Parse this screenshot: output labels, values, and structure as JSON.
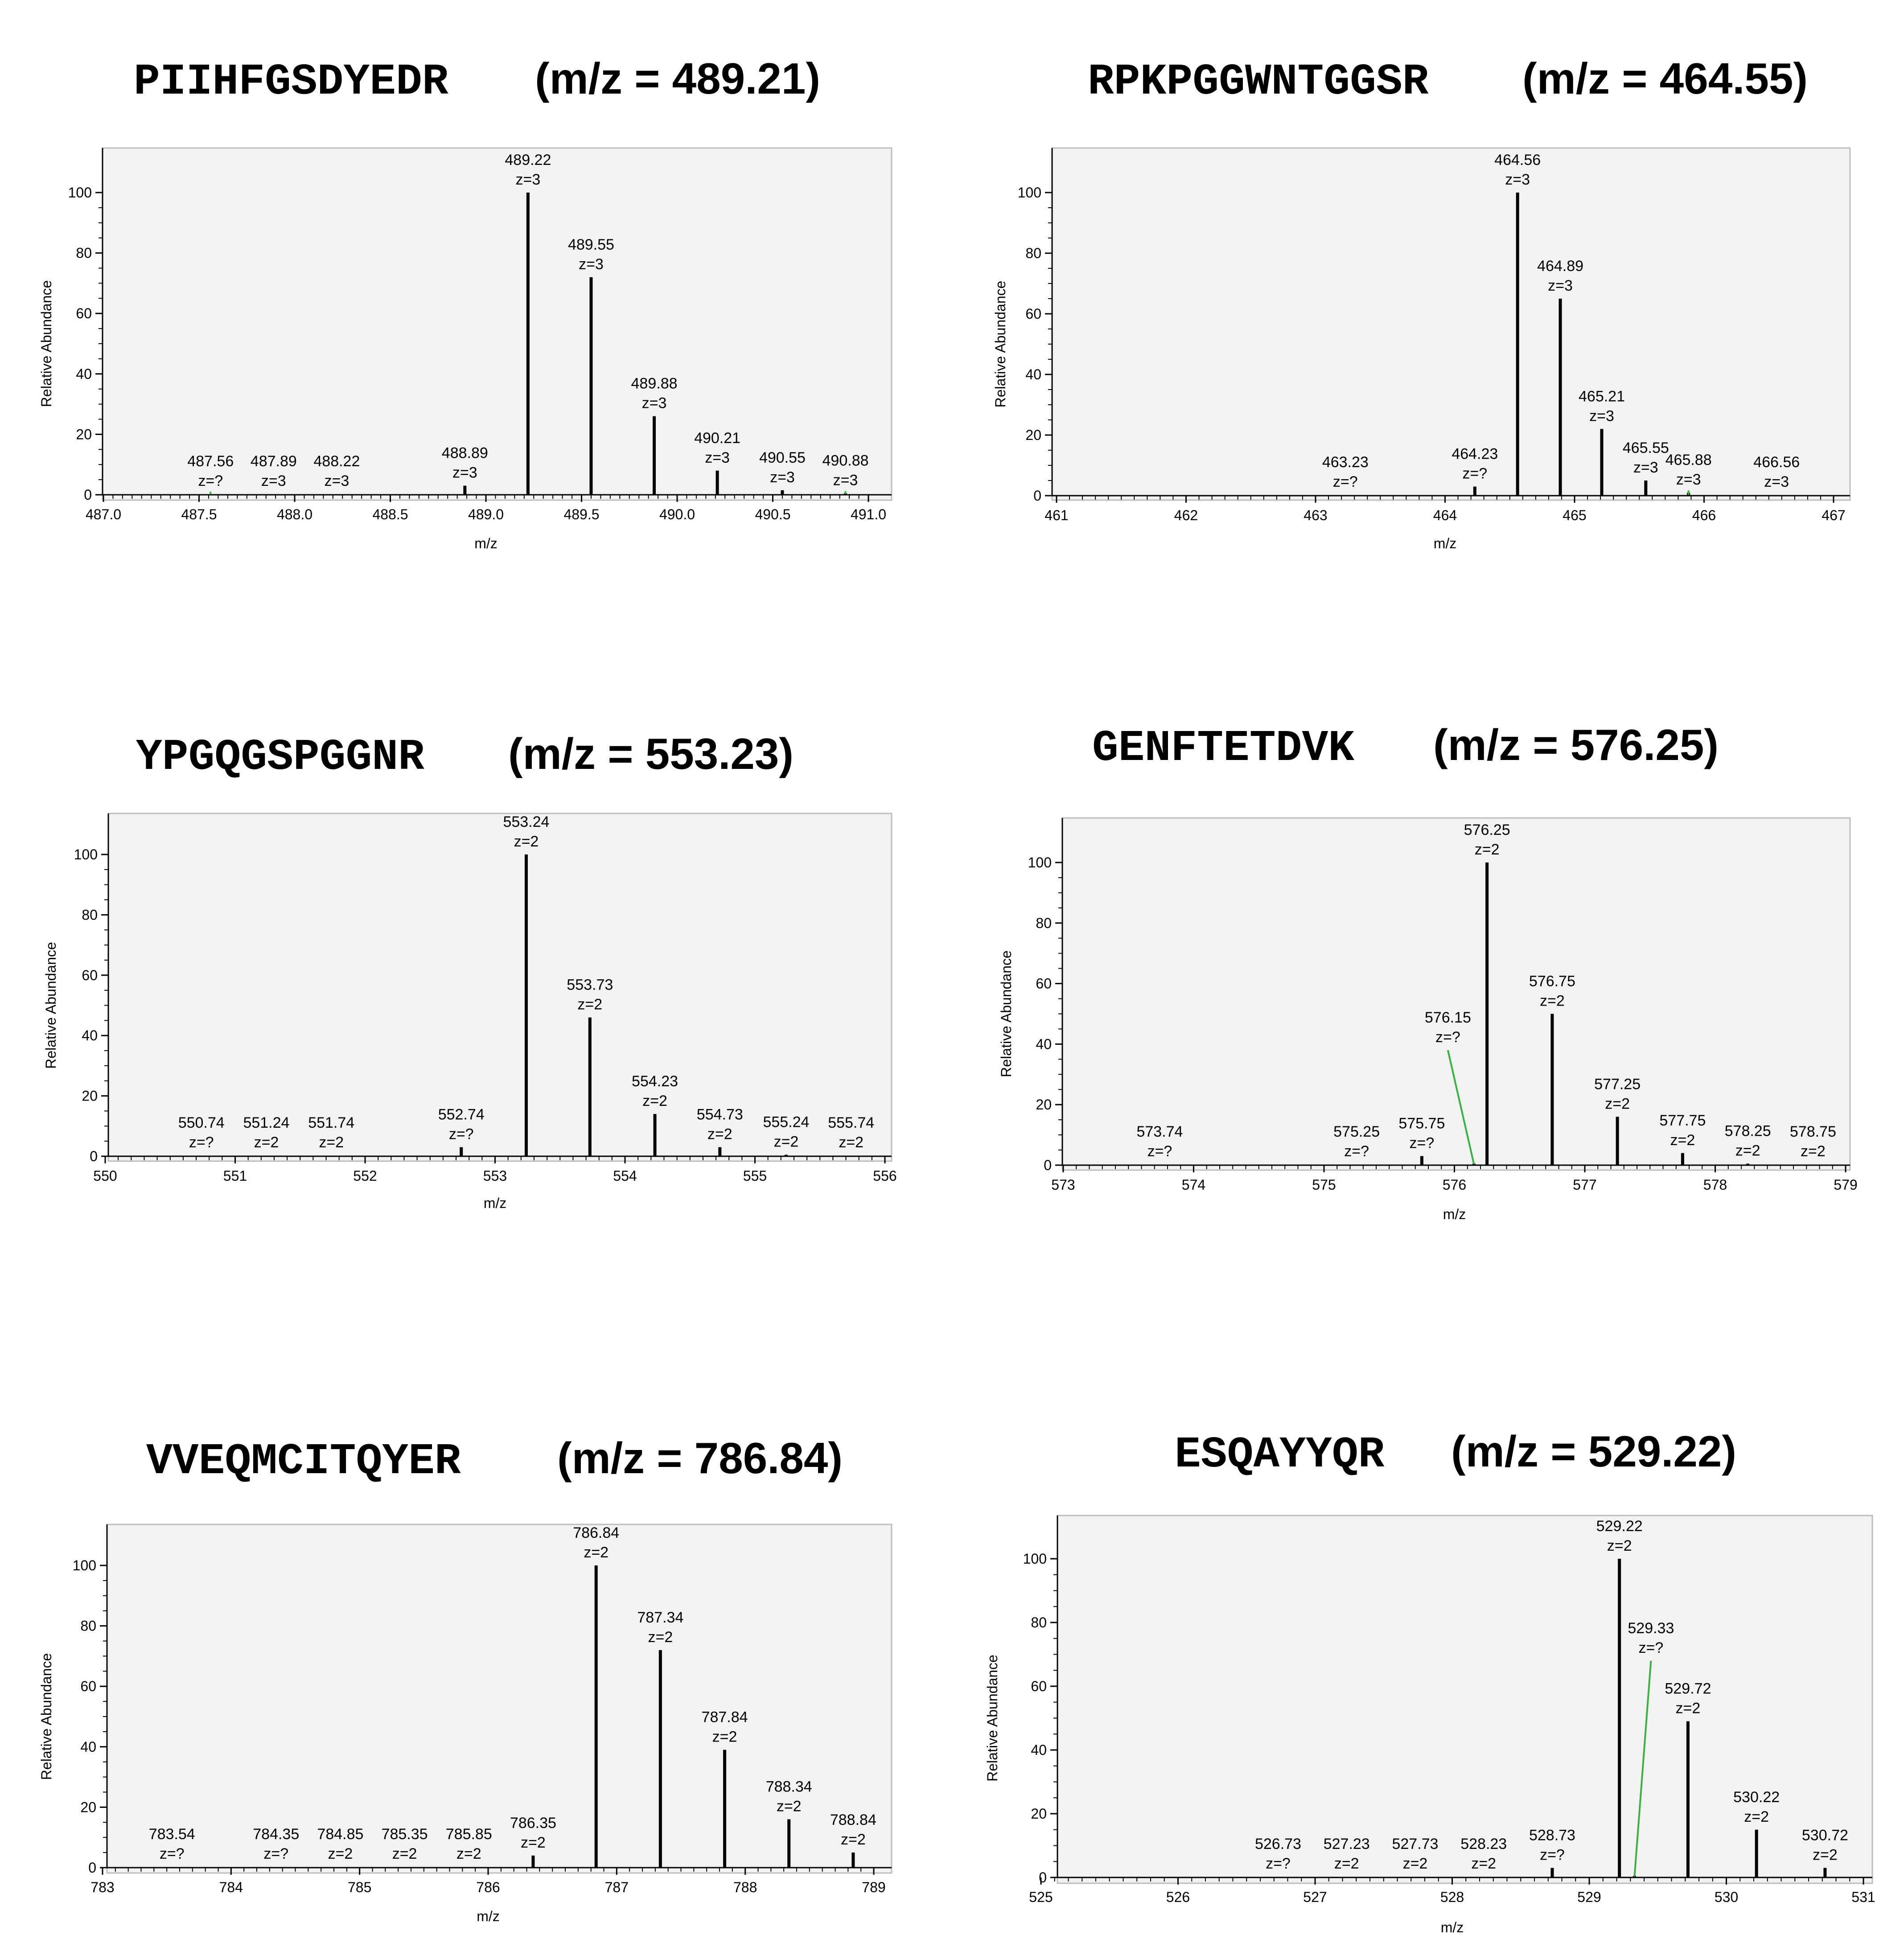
{
  "chart_data": [
    {
      "type": "bar",
      "title_sequence": "PIIHFGSDYEDR",
      "title_mz": "(m/z = 489.21)",
      "xlabel": "m/z",
      "ylabel": "Relative Abundance",
      "xlim": [
        487.0,
        491.0
      ],
      "ylim": [
        0,
        100
      ],
      "xticks": [
        "487.0",
        "487.5",
        "488.0",
        "488.5",
        "489.0",
        "489.5",
        "490.0",
        "490.5",
        "491.0"
      ],
      "yticks": [
        "0",
        "20",
        "40",
        "60",
        "80",
        "100"
      ],
      "peaks": [
        {
          "mz": 487.56,
          "y": 0.3,
          "label": "487.56",
          "z": "z=?",
          "leader": true
        },
        {
          "mz": 487.89,
          "y": 0.3,
          "label": "487.89",
          "z": "z=3"
        },
        {
          "mz": 488.22,
          "y": 0.3,
          "label": "488.22",
          "z": "z=3"
        },
        {
          "mz": 488.89,
          "y": 3,
          "label": "488.89",
          "z": "z=3"
        },
        {
          "mz": 489.22,
          "y": 100,
          "label": "489.22",
          "z": "z=3"
        },
        {
          "mz": 489.55,
          "y": 72,
          "label": "489.55",
          "z": "z=3"
        },
        {
          "mz": 489.88,
          "y": 26,
          "label": "489.88",
          "z": "z=3"
        },
        {
          "mz": 490.21,
          "y": 8,
          "label": "490.21",
          "z": "z=3"
        },
        {
          "mz": 490.55,
          "y": 1.5,
          "label": "490.55",
          "z": "z=3"
        },
        {
          "mz": 490.88,
          "y": 0.5,
          "label": "490.88",
          "z": "z=3",
          "leader": true
        }
      ]
    },
    {
      "type": "bar",
      "title_sequence": "RPKPGGWNTGGSR",
      "title_mz": "(m/z = 464.55)",
      "xlabel": "m/z",
      "ylabel": "Relative Abundance",
      "xlim": [
        461,
        467
      ],
      "ylim": [
        0,
        100
      ],
      "xticks": [
        "461",
        "462",
        "463",
        "464",
        "465",
        "466",
        "467"
      ],
      "yticks": [
        "0",
        "20",
        "40",
        "60",
        "80",
        "100"
      ],
      "peaks": [
        {
          "mz": 463.23,
          "y": 0.3,
          "label": "463.23",
          "z": "z=?"
        },
        {
          "mz": 464.23,
          "y": 3,
          "label": "464.23",
          "z": "z=?"
        },
        {
          "mz": 464.56,
          "y": 100,
          "label": "464.56",
          "z": "z=3"
        },
        {
          "mz": 464.89,
          "y": 65,
          "label": "464.89",
          "z": "z=3"
        },
        {
          "mz": 465.21,
          "y": 22,
          "label": "465.21",
          "z": "z=3"
        },
        {
          "mz": 465.55,
          "y": 5,
          "label": "465.55",
          "z": "z=3"
        },
        {
          "mz": 465.88,
          "y": 1,
          "label": "465.88",
          "z": "z=3",
          "leader": true
        },
        {
          "mz": 466.56,
          "y": 0.3,
          "label": "466.56",
          "z": "z=3"
        }
      ]
    },
    {
      "type": "bar",
      "title_sequence": "YPGQGSPGGNR",
      "title_mz": "(m/z = 553.23)",
      "xlabel": "m/z",
      "ylabel": "Relative Abundance",
      "xlim": [
        550,
        556
      ],
      "ylim": [
        0,
        100
      ],
      "xticks": [
        "550",
        "551",
        "552",
        "553",
        "554",
        "555",
        "556"
      ],
      "yticks": [
        "0",
        "20",
        "40",
        "60",
        "80",
        "100"
      ],
      "peaks": [
        {
          "mz": 550.74,
          "y": 0.3,
          "label": "550.74",
          "z": "z=?"
        },
        {
          "mz": 551.24,
          "y": 0.3,
          "label": "551.24",
          "z": "z=2"
        },
        {
          "mz": 551.74,
          "y": 0.3,
          "label": "551.74",
          "z": "z=2"
        },
        {
          "mz": 552.74,
          "y": 3,
          "label": "552.74",
          "z": "z=?"
        },
        {
          "mz": 553.24,
          "y": 100,
          "label": "553.24",
          "z": "z=2"
        },
        {
          "mz": 553.73,
          "y": 46,
          "label": "553.73",
          "z": "z=2"
        },
        {
          "mz": 554.23,
          "y": 14,
          "label": "554.23",
          "z": "z=2"
        },
        {
          "mz": 554.73,
          "y": 3,
          "label": "554.73",
          "z": "z=2"
        },
        {
          "mz": 555.24,
          "y": 0.5,
          "label": "555.24",
          "z": "z=2"
        },
        {
          "mz": 555.74,
          "y": 0.3,
          "label": "555.74",
          "z": "z=2"
        }
      ]
    },
    {
      "type": "bar",
      "title_sequence": "GENFTETDVK",
      "title_mz": "(m/z = 576.25)",
      "xlabel": "m/z",
      "ylabel": "Relative Abundance",
      "xlim": [
        573,
        579
      ],
      "ylim": [
        0,
        100
      ],
      "xticks": [
        "573",
        "574",
        "575",
        "576",
        "577",
        "578",
        "579"
      ],
      "yticks": [
        "0",
        "20",
        "40",
        "60",
        "80",
        "100"
      ],
      "peaks": [
        {
          "mz": 573.74,
          "y": 0.3,
          "label": "573.74",
          "z": "z=?"
        },
        {
          "mz": 575.25,
          "y": 0.3,
          "label": "575.25",
          "z": "z=?"
        },
        {
          "mz": 575.75,
          "y": 3,
          "label": "575.75",
          "z": "z=?"
        },
        {
          "mz": 576.15,
          "y": 0.5,
          "label": "576.15",
          "z": "z=?",
          "leader": true,
          "label_at_mz": 575.95,
          "label_at_y": 38
        },
        {
          "mz": 576.25,
          "y": 100,
          "label": "576.25",
          "z": "z=2"
        },
        {
          "mz": 576.75,
          "y": 50,
          "label": "576.75",
          "z": "z=2"
        },
        {
          "mz": 577.25,
          "y": 16,
          "label": "577.25",
          "z": "z=2"
        },
        {
          "mz": 577.75,
          "y": 4,
          "label": "577.75",
          "z": "z=2"
        },
        {
          "mz": 578.25,
          "y": 0.5,
          "label": "578.25",
          "z": "z=2"
        },
        {
          "mz": 578.75,
          "y": 0.3,
          "label": "578.75",
          "z": "z=2"
        }
      ]
    },
    {
      "type": "bar",
      "title_sequence": "VVEQMCITQYER",
      "title_mz": "(m/z = 786.84)",
      "xlabel": "m/z",
      "ylabel": "Relative Abundance",
      "xlim": [
        783,
        789
      ],
      "ylim": [
        0,
        100
      ],
      "xticks": [
        "783",
        "784",
        "785",
        "786",
        "787",
        "788",
        "789"
      ],
      "yticks": [
        "0",
        "20",
        "40",
        "60",
        "80",
        "100"
      ],
      "peaks": [
        {
          "mz": 783.54,
          "y": 0.3,
          "label": "783.54",
          "z": "z=?"
        },
        {
          "mz": 784.35,
          "y": 0.3,
          "label": "784.35",
          "z": "z=?"
        },
        {
          "mz": 784.85,
          "y": 0.3,
          "label": "784.85",
          "z": "z=2"
        },
        {
          "mz": 785.35,
          "y": 0.3,
          "label": "785.35",
          "z": "z=2"
        },
        {
          "mz": 785.85,
          "y": 0.3,
          "label": "785.85",
          "z": "z=2"
        },
        {
          "mz": 786.35,
          "y": 4,
          "label": "786.35",
          "z": "z=2"
        },
        {
          "mz": 786.84,
          "y": 100,
          "label": "786.84",
          "z": "z=2"
        },
        {
          "mz": 787.34,
          "y": 72,
          "label": "787.34",
          "z": "z=2"
        },
        {
          "mz": 787.84,
          "y": 39,
          "label": "787.84",
          "z": "z=2"
        },
        {
          "mz": 788.34,
          "y": 16,
          "label": "788.34",
          "z": "z=2"
        },
        {
          "mz": 788.84,
          "y": 5,
          "label": "788.84",
          "z": "z=2"
        }
      ]
    },
    {
      "type": "bar",
      "title_sequence": "ESQAYYQR",
      "title_mz": "(m/z = 529.22)",
      "xlabel": "m/z",
      "ylabel": "Relative Abundance",
      "xlim": [
        525,
        531
      ],
      "ylim": [
        0,
        100
      ],
      "xticks": [
        "525",
        "526",
        "527",
        "528",
        "529",
        "530",
        "531"
      ],
      "yticks": [
        "0",
        "20",
        "40",
        "60",
        "80",
        "100"
      ],
      "peaks": [
        {
          "mz": 526.73,
          "y": 0.3,
          "label": "526.73",
          "z": "z=?"
        },
        {
          "mz": 527.23,
          "y": 0.3,
          "label": "527.23",
          "z": "z=2"
        },
        {
          "mz": 527.73,
          "y": 0.3,
          "label": "527.73",
          "z": "z=2"
        },
        {
          "mz": 528.23,
          "y": 0.3,
          "label": "528.23",
          "z": "z=2"
        },
        {
          "mz": 528.73,
          "y": 3,
          "label": "528.73",
          "z": "z=?"
        },
        {
          "mz": 529.22,
          "y": 100,
          "label": "529.22",
          "z": "z=2"
        },
        {
          "mz": 529.33,
          "y": 0.5,
          "label": "529.33",
          "z": "z=?",
          "leader": true,
          "label_at_mz": 529.45,
          "label_at_y": 68
        },
        {
          "mz": 529.72,
          "y": 49,
          "label": "529.72",
          "z": "z=2"
        },
        {
          "mz": 530.22,
          "y": 15,
          "label": "530.22",
          "z": "z=2"
        },
        {
          "mz": 530.72,
          "y": 3,
          "label": "530.72",
          "z": "z=2"
        }
      ]
    }
  ]
}
